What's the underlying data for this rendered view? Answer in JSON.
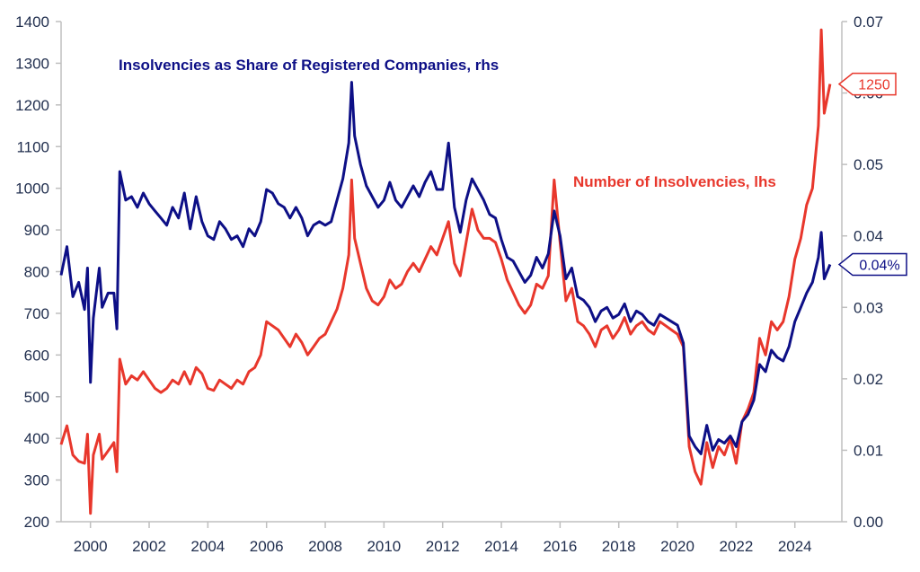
{
  "colors": {
    "blue": "#0d0f86",
    "red": "#e8372c",
    "axis": "#bfbfbf",
    "tick_text": "#1f2d4d"
  },
  "chart_data": {
    "type": "line",
    "title": "",
    "xlabel": "",
    "left_ylabel": "",
    "right_ylabel": "",
    "xlim": [
      1999.0,
      2025.6
    ],
    "left_ylim": [
      200,
      1400
    ],
    "right_ylim": [
      0,
      0.07
    ],
    "left_ticks": [
      "200",
      "300",
      "400",
      "500",
      "600",
      "700",
      "800",
      "900",
      "1000",
      "1100",
      "1200",
      "1300",
      "1400"
    ],
    "right_ticks": [
      "0.00",
      "0.01",
      "0.02",
      "0.03",
      "0.04",
      "0.05",
      "0.06",
      "0.07"
    ],
    "x_ticks": [
      "2000",
      "2002",
      "2004",
      "2006",
      "2008",
      "2010",
      "2012",
      "2014",
      "2016",
      "2018",
      "2020",
      "2022",
      "2024"
    ],
    "grid": false,
    "series": [
      {
        "name": "Insolvencies as Share of Registered Companies, rhs",
        "axis": "right",
        "color": "blue",
        "points": [
          [
            1999.0,
            0.0345
          ],
          [
            1999.2,
            0.0385
          ],
          [
            1999.4,
            0.0315
          ],
          [
            1999.6,
            0.0335
          ],
          [
            1999.8,
            0.0297
          ],
          [
            1999.9,
            0.0355
          ],
          [
            2000.0,
            0.0195
          ],
          [
            2000.1,
            0.0285
          ],
          [
            2000.3,
            0.0355
          ],
          [
            2000.4,
            0.03
          ],
          [
            2000.6,
            0.032
          ],
          [
            2000.8,
            0.032
          ],
          [
            2000.9,
            0.027
          ],
          [
            2001.0,
            0.049
          ],
          [
            2001.2,
            0.045
          ],
          [
            2001.4,
            0.0455
          ],
          [
            2001.6,
            0.044
          ],
          [
            2001.8,
            0.046
          ],
          [
            2002.0,
            0.0445
          ],
          [
            2002.2,
            0.0435
          ],
          [
            2002.4,
            0.0425
          ],
          [
            2002.6,
            0.0415
          ],
          [
            2002.8,
            0.044
          ],
          [
            2003.0,
            0.0425
          ],
          [
            2003.2,
            0.046
          ],
          [
            2003.4,
            0.041
          ],
          [
            2003.6,
            0.0455
          ],
          [
            2003.8,
            0.042
          ],
          [
            2004.0,
            0.04
          ],
          [
            2004.2,
            0.0395
          ],
          [
            2004.4,
            0.042
          ],
          [
            2004.6,
            0.041
          ],
          [
            2004.8,
            0.0395
          ],
          [
            2005.0,
            0.04
          ],
          [
            2005.2,
            0.0385
          ],
          [
            2005.4,
            0.041
          ],
          [
            2005.6,
            0.04
          ],
          [
            2005.8,
            0.042
          ],
          [
            2006.0,
            0.0465
          ],
          [
            2006.2,
            0.046
          ],
          [
            2006.4,
            0.0445
          ],
          [
            2006.6,
            0.044
          ],
          [
            2006.8,
            0.0425
          ],
          [
            2007.0,
            0.044
          ],
          [
            2007.2,
            0.0425
          ],
          [
            2007.4,
            0.04
          ],
          [
            2007.6,
            0.0415
          ],
          [
            2007.8,
            0.042
          ],
          [
            2008.0,
            0.0415
          ],
          [
            2008.2,
            0.042
          ],
          [
            2008.4,
            0.045
          ],
          [
            2008.6,
            0.048
          ],
          [
            2008.8,
            0.053
          ],
          [
            2008.9,
            0.0615
          ],
          [
            2009.0,
            0.054
          ],
          [
            2009.2,
            0.05
          ],
          [
            2009.4,
            0.047
          ],
          [
            2009.6,
            0.0455
          ],
          [
            2009.8,
            0.044
          ],
          [
            2010.0,
            0.045
          ],
          [
            2010.2,
            0.0475
          ],
          [
            2010.4,
            0.045
          ],
          [
            2010.6,
            0.044
          ],
          [
            2010.8,
            0.0455
          ],
          [
            2011.0,
            0.047
          ],
          [
            2011.2,
            0.0455
          ],
          [
            2011.4,
            0.0475
          ],
          [
            2011.6,
            0.049
          ],
          [
            2011.8,
            0.0465
          ],
          [
            2012.0,
            0.0465
          ],
          [
            2012.2,
            0.053
          ],
          [
            2012.4,
            0.044
          ],
          [
            2012.6,
            0.0405
          ],
          [
            2012.8,
            0.045
          ],
          [
            2013.0,
            0.048
          ],
          [
            2013.2,
            0.0465
          ],
          [
            2013.4,
            0.045
          ],
          [
            2013.6,
            0.043
          ],
          [
            2013.8,
            0.0425
          ],
          [
            2014.0,
            0.0395
          ],
          [
            2014.2,
            0.037
          ],
          [
            2014.4,
            0.0365
          ],
          [
            2014.6,
            0.035
          ],
          [
            2014.8,
            0.0335
          ],
          [
            2015.0,
            0.0345
          ],
          [
            2015.2,
            0.037
          ],
          [
            2015.4,
            0.0355
          ],
          [
            2015.6,
            0.0375
          ],
          [
            2015.8,
            0.0435
          ],
          [
            2016.0,
            0.04
          ],
          [
            2016.2,
            0.034
          ],
          [
            2016.4,
            0.0355
          ],
          [
            2016.6,
            0.0315
          ],
          [
            2016.8,
            0.031
          ],
          [
            2017.0,
            0.03
          ],
          [
            2017.2,
            0.028
          ],
          [
            2017.4,
            0.0295
          ],
          [
            2017.6,
            0.03
          ],
          [
            2017.8,
            0.0285
          ],
          [
            2018.0,
            0.029
          ],
          [
            2018.2,
            0.0305
          ],
          [
            2018.4,
            0.028
          ],
          [
            2018.6,
            0.0295
          ],
          [
            2018.8,
            0.029
          ],
          [
            2019.0,
            0.028
          ],
          [
            2019.2,
            0.0275
          ],
          [
            2019.4,
            0.029
          ],
          [
            2019.6,
            0.0285
          ],
          [
            2019.8,
            0.028
          ],
          [
            2020.0,
            0.0275
          ],
          [
            2020.2,
            0.025
          ],
          [
            2020.4,
            0.012
          ],
          [
            2020.6,
            0.0105
          ],
          [
            2020.8,
            0.0095
          ],
          [
            2021.0,
            0.0135
          ],
          [
            2021.2,
            0.01
          ],
          [
            2021.4,
            0.0115
          ],
          [
            2021.6,
            0.011
          ],
          [
            2021.8,
            0.012
          ],
          [
            2022.0,
            0.0105
          ],
          [
            2022.2,
            0.014
          ],
          [
            2022.4,
            0.015
          ],
          [
            2022.6,
            0.017
          ],
          [
            2022.8,
            0.022
          ],
          [
            2023.0,
            0.021
          ],
          [
            2023.2,
            0.024
          ],
          [
            2023.4,
            0.023
          ],
          [
            2023.6,
            0.0225
          ],
          [
            2023.8,
            0.0245
          ],
          [
            2024.0,
            0.028
          ],
          [
            2024.2,
            0.03
          ],
          [
            2024.4,
            0.032
          ],
          [
            2024.6,
            0.0335
          ],
          [
            2024.8,
            0.037
          ],
          [
            2024.9,
            0.0405
          ],
          [
            2025.0,
            0.034
          ],
          [
            2025.2,
            0.036
          ]
        ]
      },
      {
        "name": "Number of Insolvencies, lhs",
        "axis": "left",
        "color": "red",
        "points": [
          [
            1999.0,
            385
          ],
          [
            1999.2,
            430
          ],
          [
            1999.4,
            360
          ],
          [
            1999.6,
            345
          ],
          [
            1999.8,
            340
          ],
          [
            1999.9,
            410
          ],
          [
            2000.0,
            220
          ],
          [
            2000.1,
            360
          ],
          [
            2000.3,
            410
          ],
          [
            2000.4,
            350
          ],
          [
            2000.6,
            370
          ],
          [
            2000.8,
            390
          ],
          [
            2000.9,
            320
          ],
          [
            2001.0,
            590
          ],
          [
            2001.2,
            530
          ],
          [
            2001.4,
            550
          ],
          [
            2001.6,
            540
          ],
          [
            2001.8,
            560
          ],
          [
            2002.0,
            540
          ],
          [
            2002.2,
            520
          ],
          [
            2002.4,
            510
          ],
          [
            2002.6,
            520
          ],
          [
            2002.8,
            540
          ],
          [
            2003.0,
            530
          ],
          [
            2003.2,
            560
          ],
          [
            2003.4,
            530
          ],
          [
            2003.6,
            570
          ],
          [
            2003.8,
            555
          ],
          [
            2004.0,
            520
          ],
          [
            2004.2,
            515
          ],
          [
            2004.4,
            540
          ],
          [
            2004.6,
            530
          ],
          [
            2004.8,
            520
          ],
          [
            2005.0,
            540
          ],
          [
            2005.2,
            530
          ],
          [
            2005.4,
            560
          ],
          [
            2005.6,
            570
          ],
          [
            2005.8,
            600
          ],
          [
            2006.0,
            680
          ],
          [
            2006.2,
            670
          ],
          [
            2006.4,
            660
          ],
          [
            2006.6,
            640
          ],
          [
            2006.8,
            620
          ],
          [
            2007.0,
            650
          ],
          [
            2007.2,
            630
          ],
          [
            2007.4,
            600
          ],
          [
            2007.6,
            620
          ],
          [
            2007.8,
            640
          ],
          [
            2008.0,
            650
          ],
          [
            2008.2,
            680
          ],
          [
            2008.4,
            710
          ],
          [
            2008.6,
            760
          ],
          [
            2008.8,
            840
          ],
          [
            2008.9,
            1020
          ],
          [
            2009.0,
            880
          ],
          [
            2009.2,
            820
          ],
          [
            2009.4,
            760
          ],
          [
            2009.6,
            730
          ],
          [
            2009.8,
            720
          ],
          [
            2010.0,
            740
          ],
          [
            2010.2,
            780
          ],
          [
            2010.4,
            760
          ],
          [
            2010.6,
            770
          ],
          [
            2010.8,
            800
          ],
          [
            2011.0,
            820
          ],
          [
            2011.2,
            800
          ],
          [
            2011.4,
            830
          ],
          [
            2011.6,
            860
          ],
          [
            2011.8,
            840
          ],
          [
            2012.0,
            880
          ],
          [
            2012.2,
            920
          ],
          [
            2012.4,
            820
          ],
          [
            2012.6,
            790
          ],
          [
            2012.8,
            870
          ],
          [
            2013.0,
            950
          ],
          [
            2013.2,
            900
          ],
          [
            2013.4,
            880
          ],
          [
            2013.6,
            880
          ],
          [
            2013.8,
            870
          ],
          [
            2014.0,
            830
          ],
          [
            2014.2,
            780
          ],
          [
            2014.4,
            750
          ],
          [
            2014.6,
            720
          ],
          [
            2014.8,
            700
          ],
          [
            2015.0,
            720
          ],
          [
            2015.2,
            770
          ],
          [
            2015.4,
            760
          ],
          [
            2015.6,
            790
          ],
          [
            2015.8,
            1020
          ],
          [
            2016.0,
            870
          ],
          [
            2016.2,
            730
          ],
          [
            2016.4,
            760
          ],
          [
            2016.6,
            680
          ],
          [
            2016.8,
            670
          ],
          [
            2017.0,
            650
          ],
          [
            2017.2,
            620
          ],
          [
            2017.4,
            660
          ],
          [
            2017.6,
            670
          ],
          [
            2017.8,
            640
          ],
          [
            2018.0,
            660
          ],
          [
            2018.2,
            690
          ],
          [
            2018.4,
            650
          ],
          [
            2018.6,
            670
          ],
          [
            2018.8,
            680
          ],
          [
            2019.0,
            660
          ],
          [
            2019.2,
            650
          ],
          [
            2019.4,
            680
          ],
          [
            2019.6,
            670
          ],
          [
            2019.8,
            660
          ],
          [
            2020.0,
            650
          ],
          [
            2020.2,
            620
          ],
          [
            2020.4,
            380
          ],
          [
            2020.6,
            320
          ],
          [
            2020.8,
            290
          ],
          [
            2021.0,
            390
          ],
          [
            2021.2,
            330
          ],
          [
            2021.4,
            380
          ],
          [
            2021.6,
            360
          ],
          [
            2021.8,
            400
          ],
          [
            2022.0,
            340
          ],
          [
            2022.2,
            440
          ],
          [
            2022.4,
            470
          ],
          [
            2022.6,
            510
          ],
          [
            2022.8,
            640
          ],
          [
            2023.0,
            600
          ],
          [
            2023.2,
            680
          ],
          [
            2023.4,
            660
          ],
          [
            2023.6,
            680
          ],
          [
            2023.8,
            740
          ],
          [
            2024.0,
            830
          ],
          [
            2024.2,
            880
          ],
          [
            2024.4,
            960
          ],
          [
            2024.6,
            1000
          ],
          [
            2024.8,
            1150
          ],
          [
            2024.9,
            1380
          ],
          [
            2025.0,
            1180
          ],
          [
            2025.2,
            1250
          ]
        ]
      }
    ],
    "annotations": [
      {
        "series": "Insolvencies as Share of Registered Companies, rhs",
        "text": "Insolvencies as Share of Registered Companies, rhs"
      },
      {
        "series": "Number of Insolvencies, lhs",
        "text": "Number of Insolvencies, lhs"
      }
    ],
    "callouts": [
      {
        "series": "Number of Insolvencies, lhs",
        "text": "1250",
        "value": 1250,
        "axis": "left",
        "color": "red"
      },
      {
        "series": "Insolvencies as Share of Registered Companies, rhs",
        "text": "0.04%",
        "value": 0.036,
        "axis": "right",
        "color": "blue"
      }
    ]
  }
}
